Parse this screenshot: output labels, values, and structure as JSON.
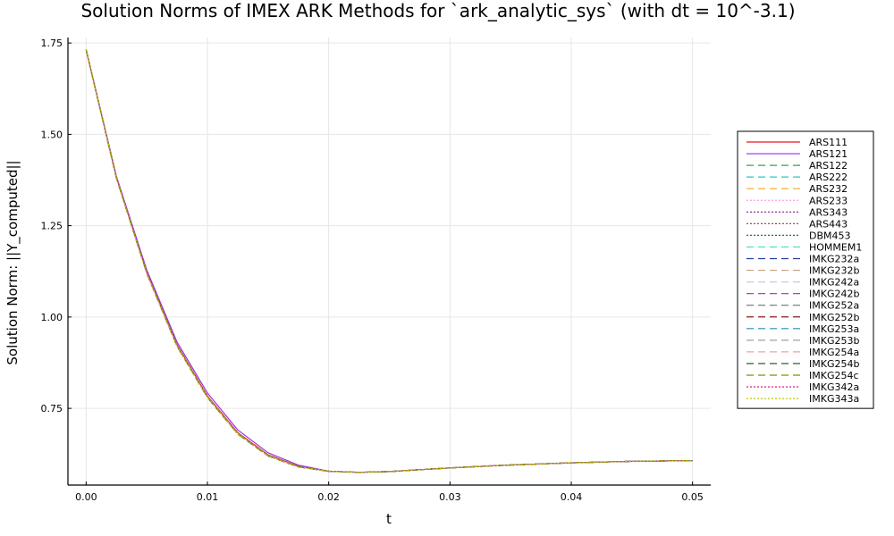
{
  "chart_data": {
    "type": "line",
    "title": "Solution Norms of IMEX ARK Methods for `ark_analytic_sys` (with dt = 10^-3.1)",
    "xlabel": "t",
    "ylabel": "Solution Norm: ||Y_computed||",
    "xlim": [
      -0.0015,
      0.0515
    ],
    "ylim": [
      0.54,
      1.765
    ],
    "xticks": [
      0.0,
      0.01,
      0.02,
      0.03,
      0.04,
      0.05
    ],
    "xtick_labels": [
      "0.00",
      "0.01",
      "0.02",
      "0.03",
      "0.04",
      "0.05"
    ],
    "yticks": [
      0.75,
      1.0,
      1.25,
      1.5,
      1.75
    ],
    "ytick_labels": [
      "0.75",
      "1.00",
      "1.25",
      "1.50",
      "1.75"
    ],
    "grid": true,
    "legend_position": "right",
    "reference_curve": {
      "x": [
        0.0,
        0.0025,
        0.005,
        0.0075,
        0.01,
        0.0125,
        0.015,
        0.0175,
        0.02,
        0.0225,
        0.025,
        0.0275,
        0.03,
        0.0325,
        0.035,
        0.0375,
        0.04,
        0.0425,
        0.045,
        0.0475,
        0.05
      ],
      "y": [
        1.732,
        1.38,
        1.12,
        0.92,
        0.78,
        0.68,
        0.62,
        0.59,
        0.578,
        0.575,
        0.577,
        0.582,
        0.587,
        0.591,
        0.595,
        0.598,
        0.601,
        0.603,
        0.605,
        0.606,
        0.607
      ]
    },
    "series": [
      {
        "name": "ARS111",
        "color": "#e41a1c",
        "dash": "solid",
        "offset": 0.004
      },
      {
        "name": "ARS121",
        "color": "#9b30e0",
        "dash": "solid",
        "offset": 0.012
      },
      {
        "name": "ARS122",
        "color": "#3aa53a",
        "dash": "dashed",
        "offset": 0.0
      },
      {
        "name": "ARS222",
        "color": "#2ec4c4",
        "dash": "dashed",
        "offset": 0.0
      },
      {
        "name": "ARS232",
        "color": "#f5a623",
        "dash": "dashed",
        "offset": 0.0
      },
      {
        "name": "ARS233",
        "color": "#ff9ee8",
        "dash": "dotted",
        "offset": 0.0
      },
      {
        "name": "ARS343",
        "color": "#8b1a8b",
        "dash": "dotted",
        "offset": 0.0
      },
      {
        "name": "ARS443",
        "color": "#a0522d",
        "dash": "dotted",
        "offset": 0.0
      },
      {
        "name": "DBM453",
        "color": "#2f6b4f",
        "dash": "dotted",
        "offset": 0.0
      },
      {
        "name": "HOMMEM1",
        "color": "#40e0b0",
        "dash": "dashed",
        "offset": 0.002
      },
      {
        "name": "IMKG232a",
        "color": "#2c3e9e",
        "dash": "dashed",
        "offset": 0.0
      },
      {
        "name": "IMKG232b",
        "color": "#c8a080",
        "dash": "dashed",
        "offset": 0.0
      },
      {
        "name": "IMKG242a",
        "color": "#c8c8ea",
        "dash": "dashed",
        "offset": 0.0
      },
      {
        "name": "IMKG242b",
        "color": "#d62dc8",
        "dash": "dashed",
        "offset": 0.0
      },
      {
        "name": "IMKG252a",
        "color": "#707070",
        "dash": "dashed",
        "offset": 0.0
      },
      {
        "name": "IMKG252b",
        "color": "#8b1a1a",
        "dash": "dashed",
        "offset": 0.0
      },
      {
        "name": "IMKG253a",
        "color": "#2a8ab0",
        "dash": "dashed",
        "offset": 0.0
      },
      {
        "name": "IMKG253b",
        "color": "#a0a0a0",
        "dash": "dashed",
        "offset": 0.0
      },
      {
        "name": "IMKG254a",
        "color": "#f0a0a0",
        "dash": "dashed",
        "offset": 0.0
      },
      {
        "name": "IMKG254b",
        "color": "#1a4a1a",
        "dash": "dashed",
        "offset": 0.0
      },
      {
        "name": "IMKG254c",
        "color": "#8a8a00",
        "dash": "dashed",
        "offset": 0.0
      },
      {
        "name": "IMKG342a",
        "color": "#e0006a",
        "dash": "dotted",
        "offset": 0.0
      },
      {
        "name": "IMKG343a",
        "color": "#b8c800",
        "dash": "dotted",
        "offset": 0.0
      }
    ]
  }
}
